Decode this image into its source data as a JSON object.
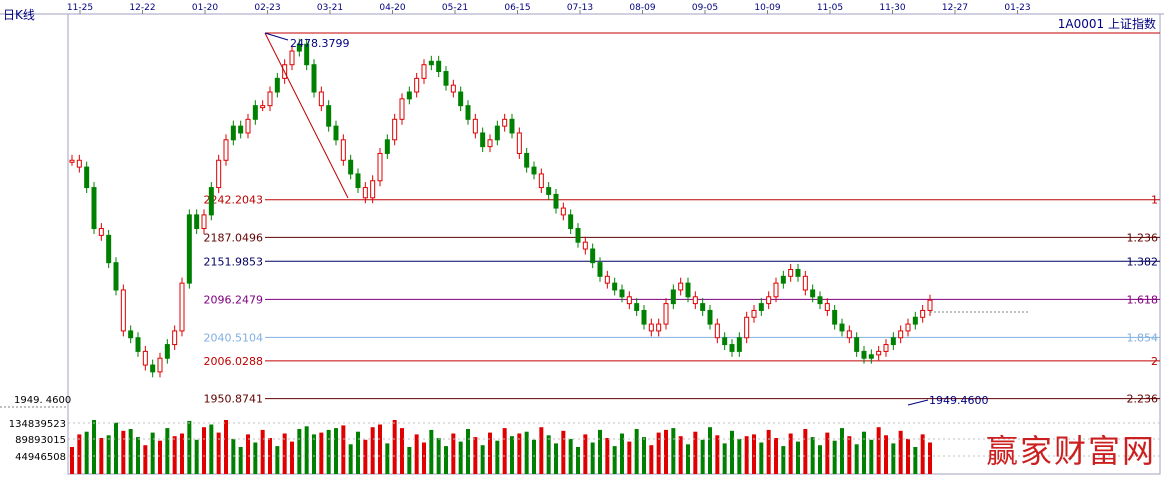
{
  "window": {
    "title_left": "日K线",
    "title_right": "1A0001 上证指数",
    "watermark": "赢家财富网"
  },
  "colors": {
    "up": "#e00000",
    "down": "#008000",
    "axis_text": "#000080",
    "grid": "#c0c0c0"
  },
  "chart_data": {
    "type": "candlestick",
    "x_ticks": [
      "11-25",
      "12-22",
      "01-20",
      "02-23",
      "03-21",
      "04-20",
      "05-21",
      "06-15",
      "07-13",
      "08-09",
      "09-05",
      "10-09",
      "11-05",
      "11-30",
      "12-27",
      "01-23"
    ],
    "price_range": [
      1940,
      2485
    ],
    "fibonacci_levels": [
      {
        "value": "2242.2043",
        "ratio": "1",
        "color": "#c00000"
      },
      {
        "value": "2187.0496",
        "ratio": "1.236",
        "color": "#600000"
      },
      {
        "value": "2151.9853",
        "ratio": "1.382",
        "color": "#000060"
      },
      {
        "value": "2096.2479",
        "ratio": "1.618",
        "color": "#800080"
      },
      {
        "value": "2040.5104",
        "ratio": "1.854",
        "color": "#80b0e0"
      },
      {
        "value": "2006.0288",
        "ratio": "2",
        "color": "#c00000"
      },
      {
        "value": "1950.8741",
        "ratio": "2.236",
        "color": "#600000"
      }
    ],
    "high_label": "2478.3799",
    "low_label": "1949.4600",
    "volume_ticks": [
      "134839523",
      "89893015",
      "44946508"
    ],
    "left_axis_label": "1949. 4600",
    "series": [
      {
        "points": [
          2300,
          2290,
          2260,
          2200,
          2190,
          2150,
          2110,
          2050,
          2040,
          2020,
          2000,
          1990,
          2010,
          2030,
          2050,
          2120,
          2220,
          2200,
          2220,
          2260,
          2300,
          2330,
          2350,
          2340,
          2360,
          2380,
          2380,
          2400,
          2420,
          2440,
          2460,
          2470,
          2440,
          2400,
          2380,
          2350,
          2330,
          2300,
          2280,
          2260,
          2245,
          2270,
          2310,
          2330,
          2360,
          2390,
          2400,
          2420,
          2440,
          2445,
          2430,
          2410,
          2400,
          2380,
          2360,
          2340,
          2320,
          2330,
          2350,
          2360,
          2340,
          2310,
          2290,
          2280,
          2260,
          2250,
          2230,
          2220,
          2200,
          2180,
          2170,
          2150,
          2130,
          2120,
          2110,
          2100,
          2090,
          2080,
          2060,
          2050,
          2060,
          2090,
          2110,
          2120,
          2100,
          2090,
          2080,
          2060,
          2040,
          2030,
          2020,
          2040,
          2070,
          2080,
          2090,
          2100,
          2120,
          2130,
          2140,
          2130,
          2110,
          2100,
          2090,
          2080,
          2060,
          2050,
          2040,
          2020,
          2010,
          2015,
          2020,
          2030,
          2040,
          2050,
          2060,
          2070,
          2080,
          2095
        ]
      }
    ]
  }
}
